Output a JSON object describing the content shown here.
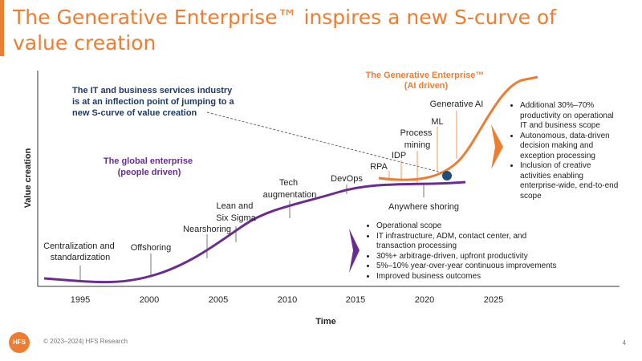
{
  "title": "The Generative Enterprise™ inspires a new S-curve of value creation",
  "y_axis_label": "Value creation",
  "x_axis_label": "Time",
  "x_ticks": [
    "1995",
    "2000",
    "2005",
    "2010",
    "2015",
    "2020",
    "2025"
  ],
  "inflection_text": [
    "The IT and business services industry",
    "is at an inflection point of jumping to a",
    "new S-curve of value creation"
  ],
  "global_enterprise": [
    "The global enterprise",
    "(people driven)"
  ],
  "generative_enterprise": [
    "The Generative Enterprise™",
    "(AI driven)"
  ],
  "milestones": {
    "centralization": [
      "Centralization and",
      "standardization"
    ],
    "offshoring": [
      "Offshoring"
    ],
    "nearshoring": [
      "Nearshoring"
    ],
    "lean": [
      "Lean and",
      "Six Sigma"
    ],
    "tech": [
      "Tech",
      "augmentation"
    ],
    "devops": [
      "DevOps"
    ],
    "anywhere": [
      "Anywhere shoring"
    ],
    "rpa": [
      "RPA"
    ],
    "idp": [
      "IDP"
    ],
    "process_mining": [
      "Process",
      "mining"
    ],
    "ml": [
      "ML"
    ],
    "gen_ai": [
      "Generative AI"
    ]
  },
  "bottom_bullets": [
    "Operational scope",
    "IT infrastructure, ADM, contact center, and transaction processing",
    "30%+ arbitrage-driven, upfront productivity",
    "5%–10% year-over-year continuous improvements",
    "Improved business outcomes"
  ],
  "right_bullets": [
    "Additional 30%–70% productivity on operational IT and business scope",
    "Autonomous, data-driven decision making and exception processing",
    "Inclusion of creative activities enabling enterprise-wide, end-to-end scope"
  ],
  "footer": "© 2023–2024| HFS Research",
  "logo_text": "HFS",
  "page_number": "4",
  "colors": {
    "orange": "#ed7d31",
    "purple": "#6a2c91",
    "navy": "#1f3864",
    "dot": "#1f4e79"
  }
}
